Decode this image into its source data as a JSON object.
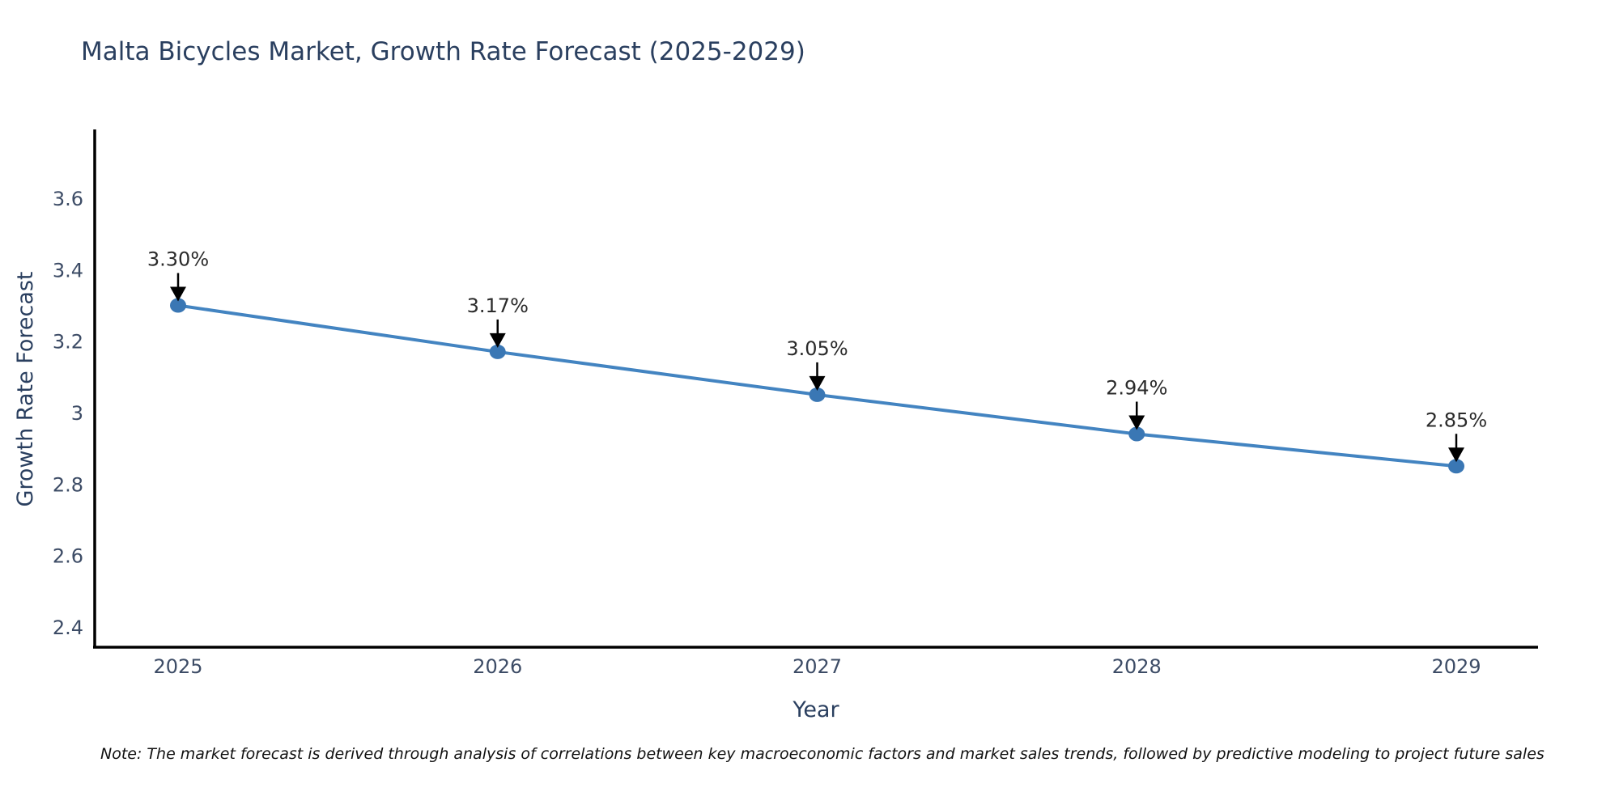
{
  "title": "Malta Bicycles Market, Growth Rate Forecast (2025-2029)",
  "note": "Note: The market forecast is derived through analysis of correlations between key macroeconomic factors and market sales trends, followed by predictive modeling to project future sales",
  "chart_data": {
    "type": "line",
    "title": "Malta Bicycles Market, Growth Rate Forecast (2025-2029)",
    "xlabel": "Year",
    "ylabel": "Growth Rate Forecast",
    "x": [
      2025,
      2026,
      2027,
      2028,
      2029
    ],
    "y": [
      3.3,
      3.17,
      3.05,
      2.94,
      2.85
    ],
    "point_labels": [
      "3.30%",
      "3.17%",
      "3.05%",
      "2.94%",
      "2.85%"
    ],
    "xtick_labels": [
      "2025",
      "2026",
      "2027",
      "2028",
      "2029"
    ],
    "yticks": [
      3.6,
      3.4,
      3.2,
      3.0,
      2.8,
      2.6,
      2.4
    ],
    "ytick_labels": [
      "3.6",
      "3.4",
      "3.2",
      "3",
      "2.8",
      "2.6",
      "2.4"
    ],
    "ylim": [
      2.34,
      3.79
    ],
    "xlim": [
      2024.74,
      2029.26
    ],
    "grid": false,
    "legend": null,
    "annotation_style": "value label above point with black down-arrow",
    "colors": {
      "line": "#4384c1",
      "marker": "#3a77b4",
      "axis": "#000000",
      "axis_text": "#3d4c66",
      "title_text": "#2a3f5f",
      "annotation_text": "#2b2b2b",
      "background": "#ffffff"
    }
  }
}
